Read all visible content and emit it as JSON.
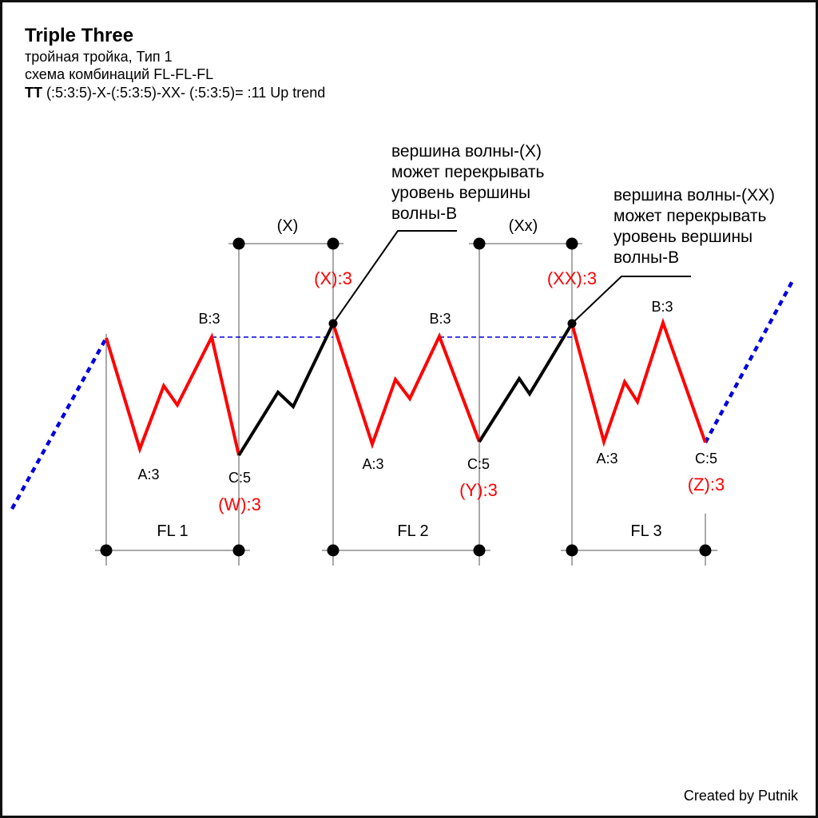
{
  "title": "Triple Three",
  "subtitle_lines": [
    "тройная тройка, Тип 1",
    "схема комбинаций FL-FL-FL"
  ],
  "formula": {
    "bold": "TT",
    "text": " (:5:3:5)-X-(:5:3:5)-XX- (:5:3:5)= :11 Up trend"
  },
  "credit": "Created by Putnik",
  "annotations": {
    "x_note": [
      "вершина волны-(X)",
      "может перекрывать",
      "уровень вершины",
      "волны-В"
    ],
    "xx_note": [
      "вершина волны-(XX)",
      "может перекрывать",
      "уровень вершины",
      "волны-В"
    ]
  },
  "labels": {
    "x_bracket": "(X)",
    "xx_bracket": "(Xx)",
    "fl1": "FL 1",
    "fl2": "FL 2",
    "fl3": "FL 3",
    "a1": "A:3",
    "b1": "B:3",
    "c1": "C:5",
    "w": "(W):3",
    "x_top": "(X):3",
    "a2": "A:3",
    "b2": "B:3",
    "c2": "C:5",
    "y": "(Y):3",
    "xx_top": "(XX):3",
    "a3": "A:3",
    "b3": "B:3",
    "c3": "C:5",
    "z": "(Z):3"
  },
  "colors": {
    "correction_wave": "#ff0000",
    "connector_wave": "#000000",
    "trend_extension": "#0000dd",
    "level_line": "#0000dd",
    "guide_lines": "#aaaaaa",
    "wave_label_red": "#ff0000",
    "text": "#000000"
  }
}
